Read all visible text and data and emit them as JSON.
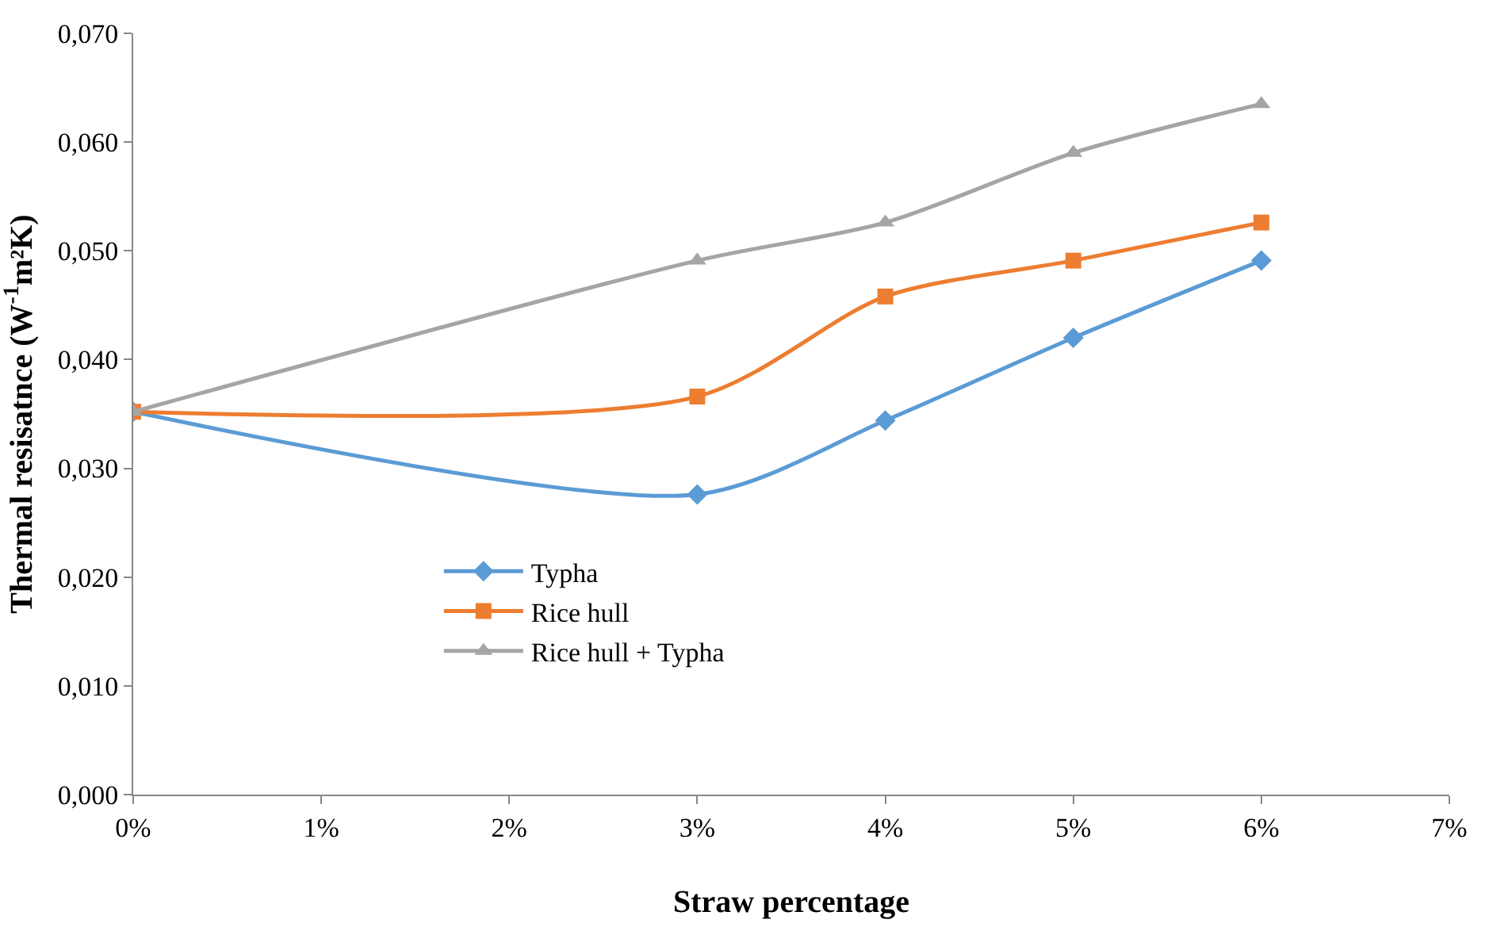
{
  "chart_data": {
    "type": "line",
    "xlabel": "Straw percentage",
    "ylabel": "Thermal resisatnce (W$^{-1}$m²K)",
    "x": [
      0,
      3,
      4,
      5,
      6
    ],
    "series": [
      {
        "name": "Typha",
        "color": "#5b9bd5",
        "marker": "diamond",
        "values": [
          0.0352,
          0.0276,
          0.0344,
          0.042,
          0.0491
        ]
      },
      {
        "name": "Rice hull",
        "color": "#ed7d31",
        "marker": "square",
        "values": [
          0.0352,
          0.0366,
          0.0458,
          0.0491,
          0.0526
        ]
      },
      {
        "name": "Rice hull + Typha",
        "color": "#a5a5a5",
        "marker": "triangle",
        "values": [
          0.0352,
          0.0491,
          0.0526,
          0.059,
          0.0635
        ]
      }
    ],
    "xlim": [
      0,
      7
    ],
    "xticks": [
      {
        "value": 0,
        "label": "0%"
      },
      {
        "value": 1,
        "label": "1%"
      },
      {
        "value": 2,
        "label": "2%"
      },
      {
        "value": 3,
        "label": "3%"
      },
      {
        "value": 4,
        "label": "4%"
      },
      {
        "value": 5,
        "label": "5%"
      },
      {
        "value": 6,
        "label": "6%"
      },
      {
        "value": 7,
        "label": "7%"
      }
    ],
    "ylim": [
      0,
      0.07
    ],
    "yticks": [
      {
        "value": 0,
        "label": "0,000"
      },
      {
        "value": 0.01,
        "label": "0,010"
      },
      {
        "value": 0.02,
        "label": "0,020"
      },
      {
        "value": 0.03,
        "label": "0,030"
      },
      {
        "value": 0.04,
        "label": "0,040"
      },
      {
        "value": 0.05,
        "label": "0,050"
      },
      {
        "value": 0.06,
        "label": "0,060"
      },
      {
        "value": 0.07,
        "label": "0,070"
      }
    ],
    "legend": "bottom",
    "line_style": "solid"
  }
}
